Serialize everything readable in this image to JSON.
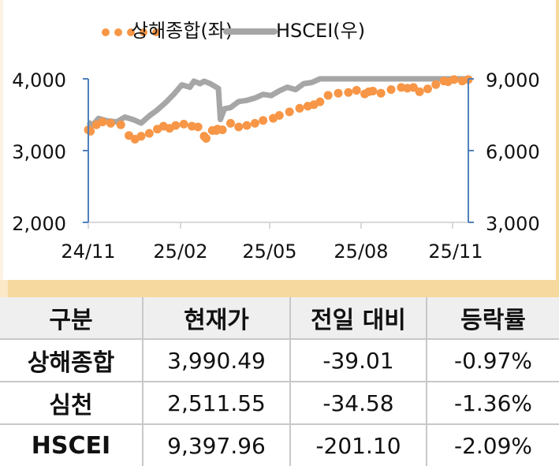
{
  "chart_data": {
    "type": "line",
    "title": "",
    "legend_position": "top",
    "grid": false,
    "x_tick_labels": [
      "24/11",
      "25/02",
      "25/05",
      "25/08",
      "25/11"
    ],
    "xlabel": "",
    "y_left": {
      "label": "상해종합(좌)",
      "ticks": [
        "4,000",
        "3,000",
        "2,000"
      ],
      "range": [
        2000,
        4000
      ]
    },
    "y_right": {
      "label": "HSCEI(우)",
      "ticks": [
        "9,000",
        "6,000",
        "3,000"
      ],
      "range": [
        3000,
        9000
      ]
    },
    "series": [
      {
        "name": "상해종합(좌)",
        "axis": "left",
        "style": "dotted",
        "color": "#f79646",
        "x": [
          0,
          0.05,
          0.2,
          0.35,
          0.55,
          0.8,
          1.0,
          1.15,
          1.3,
          1.5,
          1.7,
          1.85,
          2.0,
          2.15,
          2.35,
          2.55,
          2.7,
          2.85,
          2.9,
          3.05,
          3.15,
          3.18,
          3.3,
          3.5,
          3.7,
          3.9,
          4.1,
          4.3,
          4.55,
          4.7,
          4.95,
          5.2,
          5.4,
          5.55,
          5.7,
          5.9,
          6.15,
          6.4,
          6.6,
          6.8,
          6.9,
          7.0,
          7.2,
          7.45,
          7.7,
          7.85,
          8.0,
          8.15,
          8.35,
          8.55,
          8.75,
          8.85,
          9.0,
          9.2,
          9.35
        ],
        "values": [
          3290,
          3270,
          3360,
          3400,
          3380,
          3360,
          3210,
          3160,
          3200,
          3240,
          3300,
          3340,
          3310,
          3350,
          3370,
          3340,
          3330,
          3200,
          3170,
          3280,
          3280,
          3300,
          3290,
          3380,
          3330,
          3350,
          3380,
          3420,
          3450,
          3490,
          3540,
          3590,
          3620,
          3640,
          3680,
          3770,
          3800,
          3810,
          3840,
          3790,
          3820,
          3830,
          3800,
          3850,
          3880,
          3870,
          3880,
          3820,
          3860,
          3920,
          3970,
          3960,
          3990,
          3970,
          3990
        ]
      },
      {
        "name": "HSCEI(우)",
        "axis": "right",
        "style": "solid",
        "color": "#a6a6a6",
        "x": [
          0,
          0.1,
          0.25,
          0.45,
          0.7,
          0.9,
          1.1,
          1.3,
          1.5,
          1.7,
          1.9,
          2.1,
          2.3,
          2.5,
          2.6,
          2.75,
          2.85,
          3.0,
          3.2,
          3.25,
          3.35,
          3.5,
          3.7,
          3.9,
          4.1,
          4.3,
          4.5,
          4.7,
          4.9,
          5.1,
          5.3,
          5.5,
          5.7,
          5.9,
          6.2,
          6.5,
          6.8,
          7.1,
          7.4,
          7.7,
          8.0,
          8.3,
          8.6,
          8.9,
          9.2,
          9.35
        ],
        "values": [
          7200,
          7050,
          7350,
          7250,
          7200,
          7400,
          7300,
          7150,
          7450,
          7700,
          8000,
          8350,
          8750,
          8650,
          8900,
          8800,
          8900,
          8800,
          8600,
          7300,
          7750,
          7800,
          8050,
          8100,
          8200,
          8350,
          8300,
          8500,
          8650,
          8550,
          8800,
          8850,
          9000,
          9100,
          9150,
          9100,
          9050,
          9100,
          9200,
          9150,
          9250,
          9300,
          9400,
          9300,
          9450,
          9400
        ]
      }
    ]
  },
  "legend": {
    "items": [
      {
        "label": "상해종합(좌)",
        "style": "dotted",
        "color": "#f79646"
      },
      {
        "label": "HSCEI(우)",
        "style": "solid",
        "color": "#a6a6a6"
      }
    ]
  },
  "colors": {
    "axis": "#4f81bd",
    "baseline": "#d9d9d9",
    "accent_band": "#f6d99e",
    "table_header_bg": "#efefef",
    "grid_line": "#c8c8c8"
  },
  "table": {
    "headers": [
      "구분",
      "현재가",
      "전일 대비",
      "등락률"
    ],
    "rows": [
      {
        "name": "상해종합",
        "price": "3,990.49",
        "change": "-39.01",
        "pct": "-0.97%"
      },
      {
        "name": "심천",
        "price": "2,511.55",
        "change": "-34.58",
        "pct": "-1.36%"
      },
      {
        "name": "HSCEI",
        "price": "9,397.96",
        "change": "-201.10",
        "pct": "-2.09%"
      }
    ]
  }
}
